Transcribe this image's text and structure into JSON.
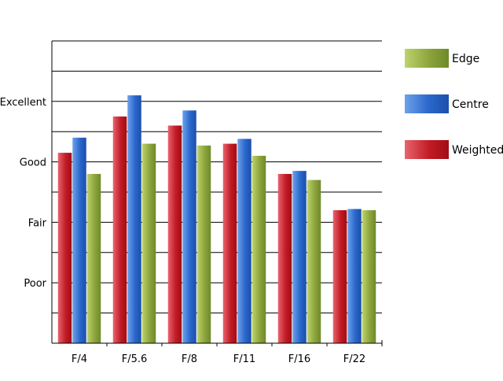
{
  "chart_data": {
    "type": "bar",
    "categories": [
      "F/4",
      "F/5.6",
      "F/8",
      "F/11",
      "F/16",
      "F/22"
    ],
    "series": [
      {
        "name": "Weighted",
        "values": [
          3.15,
          3.75,
          3.6,
          3.3,
          2.8,
          2.2
        ],
        "colors": [
          "#e8646e",
          "#c21c26",
          "#a10c14"
        ]
      },
      {
        "name": "Centre",
        "values": [
          3.4,
          4.1,
          3.85,
          3.38,
          2.85,
          2.22
        ],
        "colors": [
          "#6da2ea",
          "#2a67cc",
          "#1c4faa"
        ]
      },
      {
        "name": "Edge",
        "values": [
          2.8,
          3.3,
          3.27,
          3.1,
          2.7,
          2.2
        ],
        "colors": [
          "#bcd46c",
          "#8ea43c",
          "#6e8a2a"
        ]
      }
    ],
    "y_ticks": [
      {
        "value": 1,
        "label": "Poor"
      },
      {
        "value": 2,
        "label": "Fair"
      },
      {
        "value": 3,
        "label": "Good"
      },
      {
        "value": 4,
        "label": "Excellent"
      }
    ],
    "ylim": [
      0,
      5
    ],
    "gridlines": [
      0.5,
      1,
      1.5,
      2,
      2.5,
      3,
      3.5,
      4,
      4.5,
      5
    ],
    "grid": true,
    "legend_position": "right",
    "legend_order": [
      "Edge",
      "Centre",
      "Weighted"
    ]
  }
}
